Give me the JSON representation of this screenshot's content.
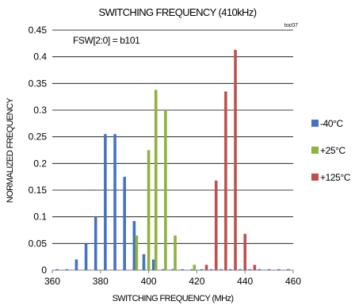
{
  "chart_data": {
    "type": "bar",
    "title": "SWITCHING FREQUENCY (410kHz)",
    "figure_tag": "toc07",
    "annotation": "FSW[2:0] = b101",
    "xlabel": "SWITCHING FREQUENCY (MHz)",
    "ylabel": "NORMALIZED FREQUENCY",
    "xlim": [
      360,
      460
    ],
    "ylim": [
      0,
      0.45
    ],
    "x_ticks": [
      "360",
      "380",
      "400",
      "420",
      "440",
      "460"
    ],
    "y_ticks": [
      "0",
      "0.05",
      "0.1",
      "0.15",
      "0.2",
      "0.25",
      "0.3",
      "0.35",
      "0.4",
      "0.45"
    ],
    "grid": true,
    "legend_position": "right",
    "series": [
      {
        "name": "-40°C",
        "color": "#4472c4",
        "x": [
          362,
          366,
          370,
          374,
          378,
          382,
          386,
          390,
          394,
          398,
          402,
          406,
          410,
          414,
          418,
          422,
          426,
          430,
          434,
          438,
          442,
          446,
          450,
          454,
          458
        ],
        "values": [
          0,
          0,
          0.02,
          0.05,
          0.1,
          0.255,
          0.255,
          0.175,
          0.092,
          0.03,
          0.02,
          0,
          0,
          0,
          0,
          0,
          0,
          0,
          0,
          0,
          0,
          0,
          0,
          0,
          0
        ]
      },
      {
        "name": "+25°C",
        "color": "#8db33d",
        "x": [
          395,
          400,
          403,
          407,
          411,
          419
        ],
        "values": [
          0.065,
          0.225,
          0.338,
          0.3,
          0.065,
          0.01
        ]
      },
      {
        "name": "+125°C",
        "color": "#c0504d",
        "x": [
          424,
          428,
          432,
          436,
          440,
          444
        ],
        "values": [
          0.01,
          0.168,
          0.335,
          0.413,
          0.068,
          0.01
        ]
      }
    ]
  }
}
